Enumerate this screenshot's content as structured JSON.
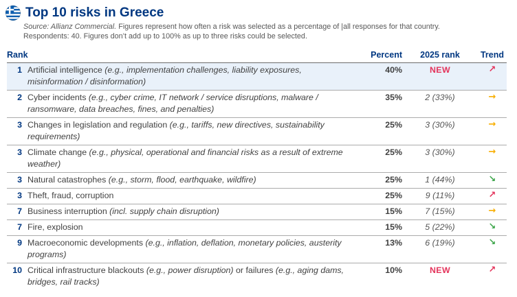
{
  "header": {
    "title": "Top 10 risks in Greece",
    "source_prefix": "Source: Allianz Commercial.",
    "source_text": " Figures represent how often a risk was selected as a percentage of |all responses for that country.",
    "source_line2": "Respondents: 40. Figures don’t add up to 100% as up to three risks could be selected."
  },
  "colors": {
    "navy": "#003781",
    "body": "#414141",
    "source": "#575757",
    "pink": "#e4355c",
    "yellow": "#f8ae00",
    "green": "#3ea64b",
    "highlight": "#e9f1fa",
    "flag_blue": "#0d5eaf"
  },
  "ui": {
    "trend_glyphs": {
      "up": "↗",
      "flat": "→",
      "down": "↘"
    }
  },
  "chart_data": {
    "type": "table",
    "title": "Top 10 risks in Greece",
    "columns": [
      "Rank",
      "Percent",
      "2025 rank",
      "Trend"
    ],
    "rows": [
      {
        "rank": "1",
        "risk": "Artificial intelligence (e.g., implementation challenges, liability exposures, misinformation / disinformation)",
        "risk_segments": [
          {
            "text": "Artificial intelligence ",
            "italic": false
          },
          {
            "text": "(e.g., implementation challenges, liability exposures, misinformation / disinformation)",
            "italic": true
          }
        ],
        "percent": "40%",
        "rank_2025": "NEW",
        "is_new": true,
        "trend": "up",
        "highlight": true
      },
      {
        "rank": "2",
        "risk": "Cyber incidents (e.g., cyber crime, IT network / service disruptions, malware / ransomware, data breaches, fines, and penalties)",
        "risk_segments": [
          {
            "text": "Cyber incidents ",
            "italic": false
          },
          {
            "text": "(e.g., cyber crime, IT network / service disruptions, malware / ransomware, data breaches, fines, and penalties)",
            "italic": true
          }
        ],
        "percent": "35%",
        "rank_2025": "2 (33%)",
        "is_new": false,
        "trend": "flat",
        "highlight": false
      },
      {
        "rank": "3",
        "risk": "Changes in legislation and regulation (e.g., tariffs, new directives, sustainability requirements)",
        "risk_segments": [
          {
            "text": "Changes in legislation and regulation ",
            "italic": false
          },
          {
            "text": "(e.g., tariffs, new directives, sustainability requirements)",
            "italic": true
          }
        ],
        "percent": "25%",
        "rank_2025": "3 (30%)",
        "is_new": false,
        "trend": "flat",
        "highlight": false
      },
      {
        "rank": "3",
        "risk": "Climate change (e.g., physical, operational and financial risks as a result of extreme weather)",
        "risk_segments": [
          {
            "text": "Climate change ",
            "italic": false
          },
          {
            "text": "(e.g., physical, operational and financial risks as a result of extreme weather)",
            "italic": true
          }
        ],
        "percent": "25%",
        "rank_2025": "3 (30%)",
        "is_new": false,
        "trend": "flat",
        "highlight": false
      },
      {
        "rank": "3",
        "risk": "Natural catastrophes (e.g., storm, flood, earthquake, wildfire)",
        "risk_segments": [
          {
            "text": "Natural catastrophes ",
            "italic": false
          },
          {
            "text": "(e.g., storm, flood, earthquake, wildfire)",
            "italic": true
          }
        ],
        "percent": "25%",
        "rank_2025": "1 (44%)",
        "is_new": false,
        "trend": "down",
        "highlight": false
      },
      {
        "rank": "3",
        "risk": "Theft, fraud, corruption",
        "risk_segments": [
          {
            "text": "Theft, fraud, corruption",
            "italic": false
          }
        ],
        "percent": "25%",
        "rank_2025": "9 (11%)",
        "is_new": false,
        "trend": "up",
        "highlight": false
      },
      {
        "rank": "7",
        "risk": "Business interruption (incl. supply chain disruption)",
        "risk_segments": [
          {
            "text": "Business interruption ",
            "italic": false
          },
          {
            "text": "(incl. supply chain disruption)",
            "italic": true
          }
        ],
        "percent": "15%",
        "rank_2025": "7 (15%)",
        "is_new": false,
        "trend": "flat",
        "highlight": false
      },
      {
        "rank": "7",
        "risk": "Fire, explosion",
        "risk_segments": [
          {
            "text": "Fire, explosion",
            "italic": false
          }
        ],
        "percent": "15%",
        "rank_2025": "5 (22%)",
        "is_new": false,
        "trend": "down",
        "highlight": false
      },
      {
        "rank": "9",
        "risk": "Macroeconomic developments (e.g., inflation, deflation, monetary policies, austerity programs)",
        "risk_segments": [
          {
            "text": "Macroeconomic developments ",
            "italic": false
          },
          {
            "text": "(e.g., inflation, deflation, monetary policies, austerity programs)",
            "italic": true
          }
        ],
        "percent": "13%",
        "rank_2025": "6 (19%)",
        "is_new": false,
        "trend": "down",
        "highlight": false
      },
      {
        "rank": "10",
        "risk": "Critical infrastructure blackouts (e.g., power disruption) or failures (e.g., aging dams, bridges, rail tracks)",
        "risk_segments": [
          {
            "text": "Critical infrastructure blackouts ",
            "italic": false
          },
          {
            "text": "(e.g., power disruption)",
            "italic": true
          },
          {
            "text": " or failures ",
            "italic": false
          },
          {
            "text": "(e.g., aging dams, bridges, rail tracks)",
            "italic": true
          }
        ],
        "percent": "10%",
        "rank_2025": "NEW",
        "is_new": true,
        "trend": "up",
        "highlight": false
      }
    ]
  }
}
